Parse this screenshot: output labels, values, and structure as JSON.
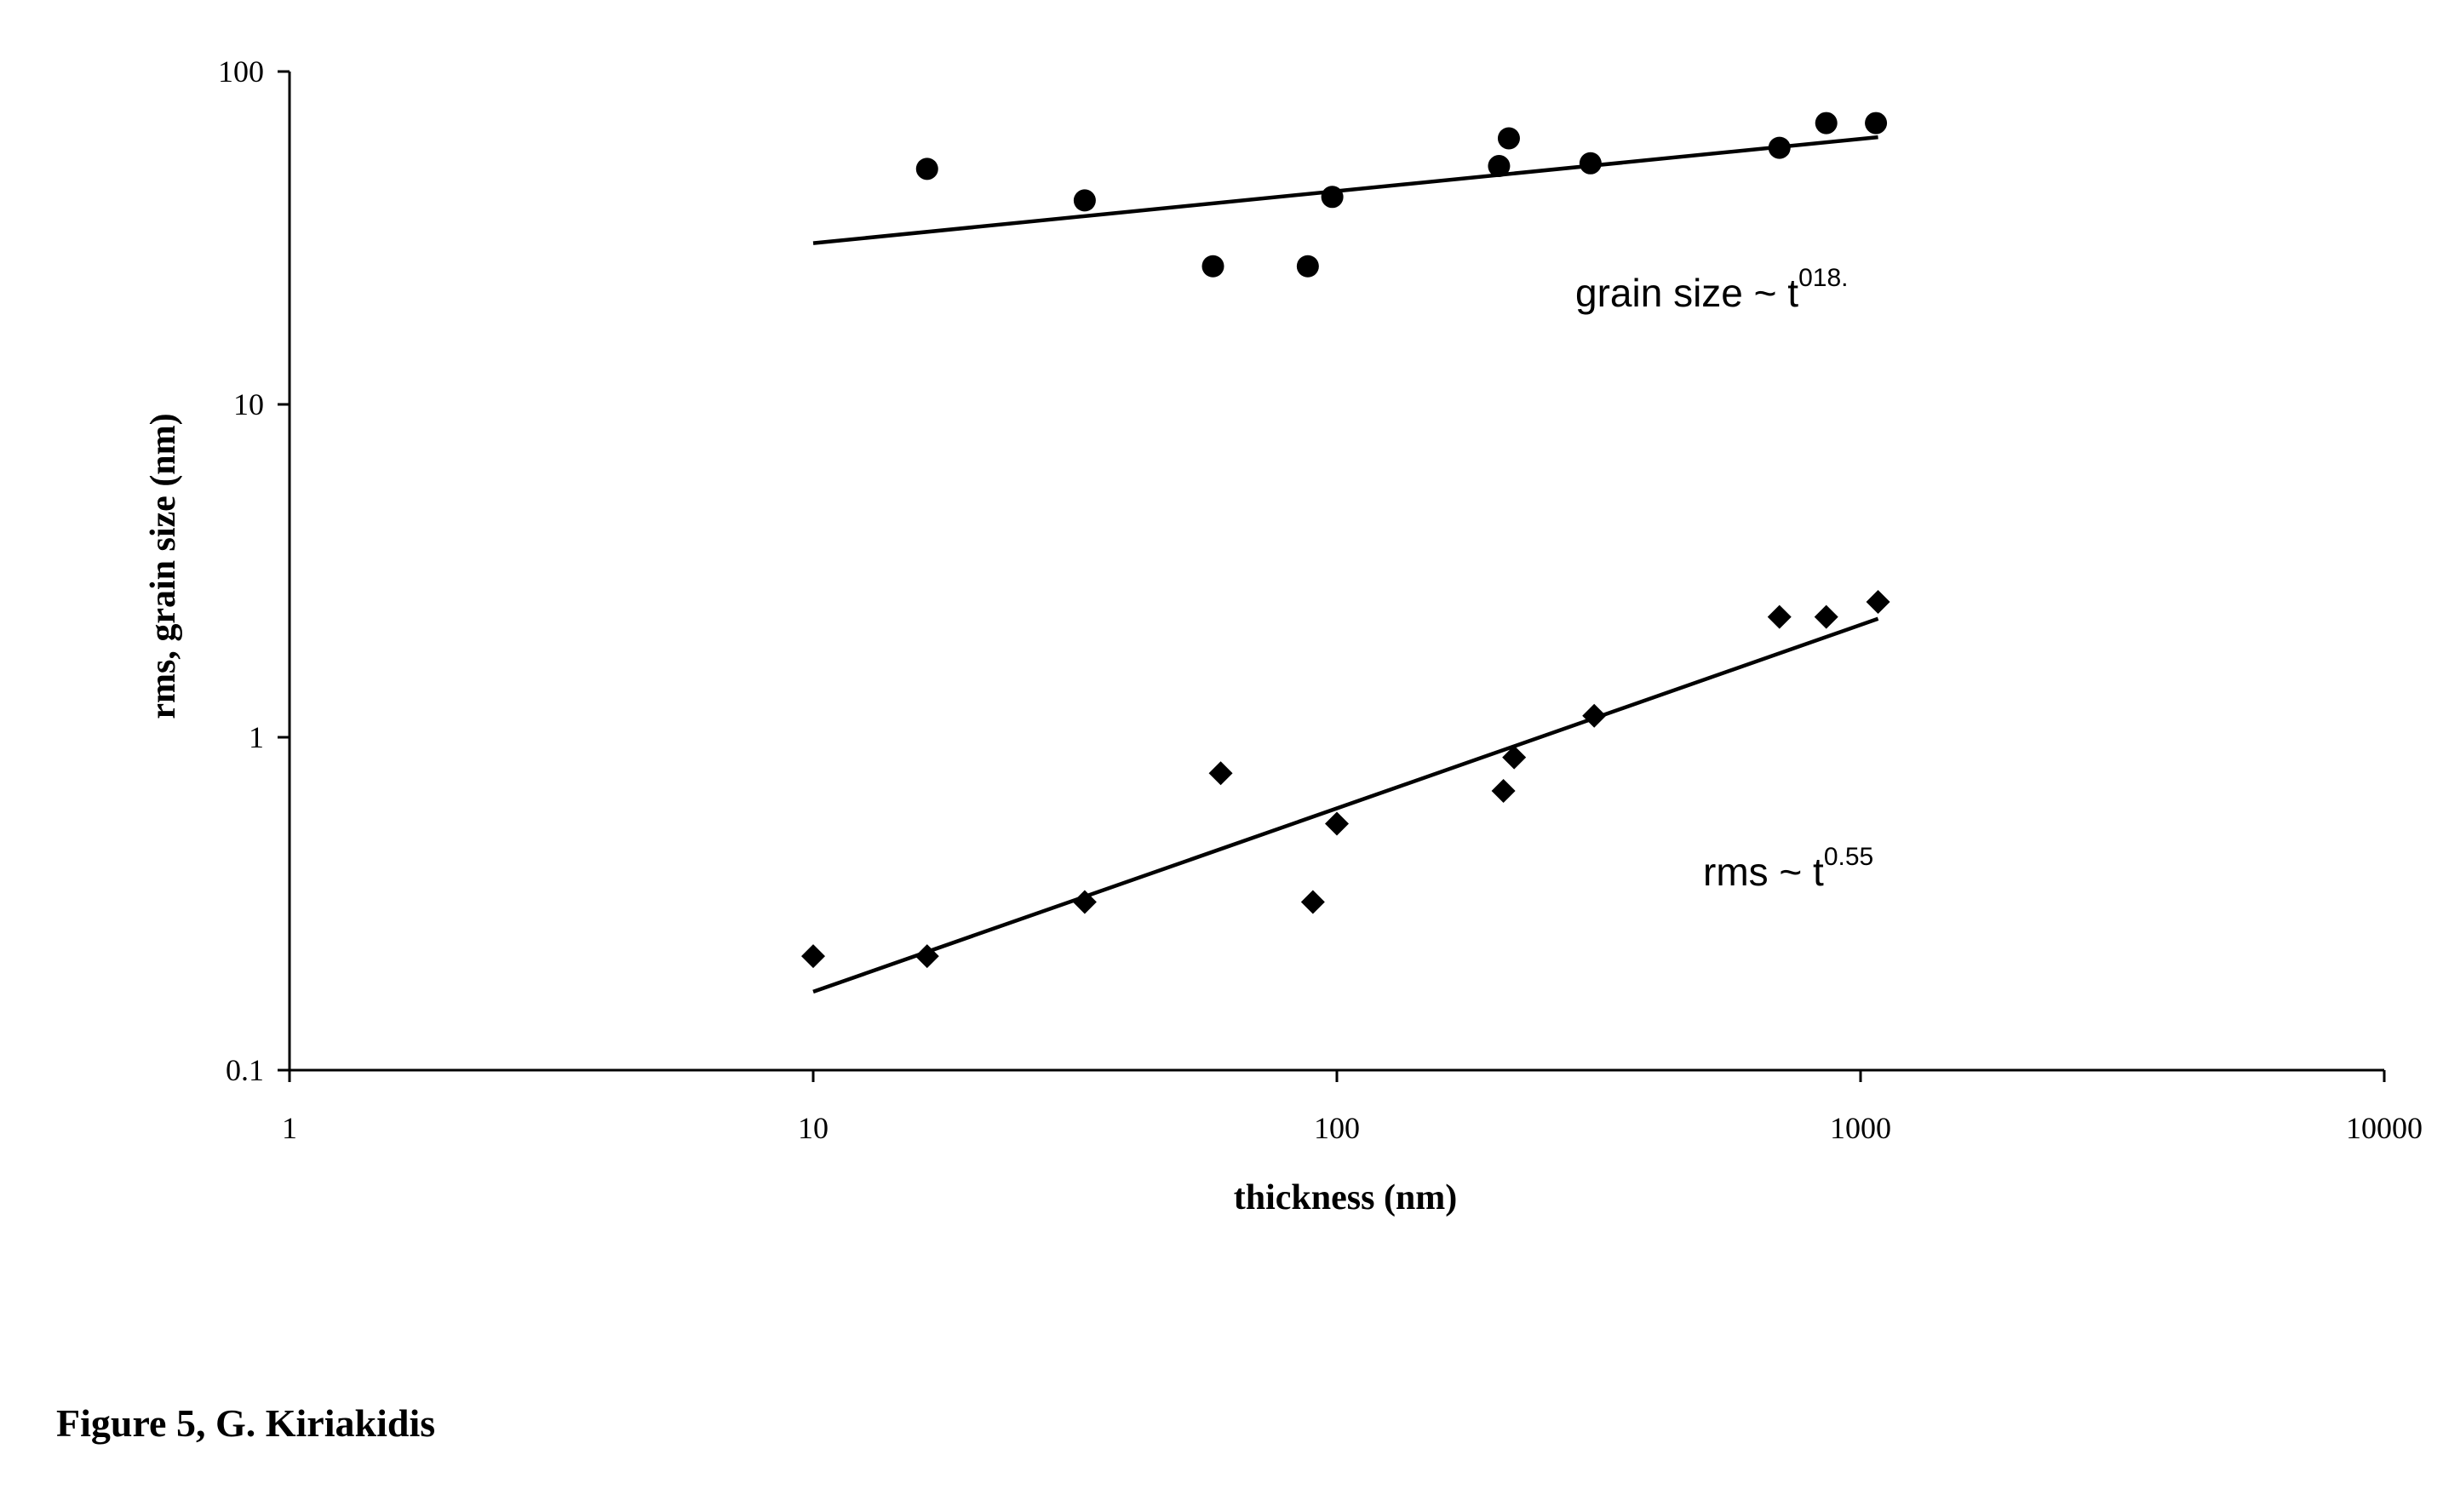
{
  "chart_data": {
    "type": "scatter",
    "title": "",
    "xlabel": "thickness (nm)",
    "ylabel": "rms, grain size (nm)",
    "xscale": "log",
    "yscale": "log",
    "xlim": [
      1,
      10000
    ],
    "ylim": [
      0.1,
      100
    ],
    "x_ticks": [
      "1",
      "10",
      "100",
      "1000",
      "10000"
    ],
    "y_ticks": [
      "0.1",
      "1",
      "10",
      "100"
    ],
    "grid": false,
    "legend": "none",
    "series": [
      {
        "marker": "circle",
        "color": "#000000",
        "points": [
          [
            16.5,
            51
          ],
          [
            33,
            41
          ],
          [
            58,
            26
          ],
          [
            88,
            26
          ],
          [
            98,
            42
          ],
          [
            204,
            52
          ],
          [
            213,
            63
          ],
          [
            305,
            53
          ],
          [
            700,
            59
          ],
          [
            860,
            70
          ],
          [
            1070,
            70
          ]
        ],
        "fit": {
          "x": [
            10,
            1080
          ],
          "y": [
            30.5,
            63.5
          ]
        },
        "annotation": {
          "text": "grain size ~ t",
          "sup": "018."
        }
      },
      {
        "marker": "diamond",
        "color": "#000000",
        "points": [
          [
            10,
            0.22
          ],
          [
            16.5,
            0.22
          ],
          [
            33,
            0.32
          ],
          [
            60,
            0.78
          ],
          [
            90,
            0.32
          ],
          [
            100,
            0.55
          ],
          [
            208,
            0.69
          ],
          [
            218,
            0.87
          ],
          [
            310,
            1.16
          ],
          [
            700,
            2.3
          ],
          [
            860,
            2.3
          ],
          [
            1080,
            2.55
          ]
        ],
        "fit": {
          "x": [
            10,
            1080
          ],
          "y": [
            0.172,
            2.27
          ]
        },
        "annotation": {
          "text": "rms ~ t",
          "sup": "0.55"
        }
      }
    ]
  },
  "caption": "Figure 5, G. Kiriakidis"
}
